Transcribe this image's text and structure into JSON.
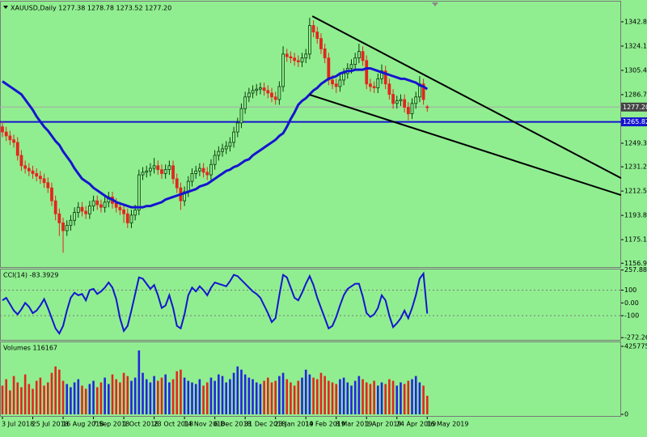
{
  "chart_data": [
    {
      "type": "candlestick",
      "title": "XAUUSD,Daily 1277.38 1278.78 1273.52 1277.20",
      "categories": [
        "3 Jul 2018",
        null,
        null,
        null,
        null,
        null,
        null,
        null,
        "25 Jul 2018",
        null,
        null,
        null,
        null,
        null,
        null,
        null,
        "16 Aug 2018",
        null,
        null,
        null,
        null,
        null,
        null,
        null,
        "7 Sep 2018",
        null,
        null,
        null,
        null,
        null,
        null,
        null,
        "1 Oct 2018",
        null,
        null,
        null,
        null,
        null,
        null,
        null,
        "23 Oct 2018",
        null,
        null,
        null,
        null,
        null,
        null,
        null,
        "14 Nov 2018",
        null,
        null,
        null,
        null,
        null,
        null,
        null,
        "6 Dec 2018",
        null,
        null,
        null,
        null,
        null,
        null,
        null,
        "31 Dec 2018",
        null,
        null,
        null,
        null,
        null,
        null,
        null,
        "23 Jan 2019",
        null,
        null,
        null,
        null,
        null,
        null,
        null,
        "14 Feb 2019",
        null,
        null,
        null,
        null,
        null,
        null,
        null,
        "8 Mar 2019",
        null,
        null,
        null,
        null,
        null,
        null,
        null,
        "1 Apr 2019",
        null,
        null,
        null,
        null,
        null,
        null,
        null,
        "24 Apr 2019",
        null,
        null,
        null,
        null,
        null,
        null,
        null,
        "16 May 2019"
      ],
      "open": [
        1262,
        1258,
        1255,
        1252,
        1250,
        1240,
        1232,
        1230,
        1228,
        1226,
        1224,
        1222,
        1219,
        1215,
        1205,
        1195,
        1188,
        1182,
        1186,
        1190,
        1196,
        1200,
        1197,
        1195,
        1201,
        1205,
        1202,
        1200,
        1204,
        1208,
        1203,
        1200,
        1198,
        1195,
        1188,
        1194,
        1198,
        1225,
        1227,
        1228,
        1230,
        1232,
        1229,
        1226,
        1229,
        1232,
        1222,
        1215,
        1205,
        1212,
        1220,
        1226,
        1228,
        1230,
        1227,
        1225,
        1233,
        1240,
        1243,
        1245,
        1247,
        1250,
        1258,
        1265,
        1276,
        1285,
        1288,
        1290,
        1291,
        1292,
        1290,
        1288,
        1285,
        1283,
        1293,
        1318,
        1316,
        1315,
        1313,
        1312,
        1315,
        1318,
        1340,
        1335,
        1330,
        1322,
        1315,
        1298,
        1295,
        1293,
        1298,
        1303,
        1307,
        1310,
        1315,
        1320,
        1313,
        1295,
        1293,
        1292,
        1299,
        1305,
        1295,
        1287,
        1280,
        1282,
        1283,
        1277,
        1272,
        1280,
        1285,
        1295,
        1277.38
      ],
      "high": [
        1266,
        1262,
        1259,
        1256,
        1254,
        1244,
        1236,
        1234,
        1232,
        1230,
        1228,
        1226,
        1223,
        1219,
        1209,
        1199,
        1192,
        1190,
        1194,
        1200,
        1204,
        1204,
        1201,
        1205,
        1209,
        1209,
        1206,
        1208,
        1212,
        1212,
        1207,
        1204,
        1202,
        1199,
        1198,
        1202,
        1229,
        1231,
        1232,
        1234,
        1238,
        1236,
        1233,
        1233,
        1236,
        1236,
        1226,
        1219,
        1216,
        1224,
        1230,
        1232,
        1234,
        1234,
        1231,
        1237,
        1244,
        1247,
        1249,
        1251,
        1254,
        1262,
        1269,
        1280,
        1289,
        1292,
        1294,
        1295,
        1296,
        1296,
        1294,
        1292,
        1289,
        1297,
        1324,
        1322,
        1320,
        1319,
        1317,
        1319,
        1322,
        1346,
        1344,
        1339,
        1334,
        1326,
        1319,
        1302,
        1299,
        1302,
        1307,
        1311,
        1314,
        1319,
        1326,
        1324,
        1317,
        1299,
        1297,
        1303,
        1310,
        1309,
        1299,
        1291,
        1286,
        1287,
        1287,
        1281,
        1284,
        1289,
        1301,
        1299,
        1278.78
      ],
      "low": [
        1254,
        1251,
        1248,
        1246,
        1236,
        1228,
        1226,
        1224,
        1222,
        1220,
        1218,
        1215,
        1211,
        1201,
        1190,
        1178,
        1165,
        1178,
        1182,
        1186,
        1192,
        1193,
        1191,
        1191,
        1197,
        1198,
        1196,
        1196,
        1200,
        1199,
        1196,
        1194,
        1188,
        1184,
        1184,
        1190,
        1194,
        1221,
        1223,
        1224,
        1226,
        1225,
        1222,
        1222,
        1225,
        1218,
        1211,
        1198,
        1201,
        1208,
        1216,
        1222,
        1224,
        1223,
        1221,
        1221,
        1229,
        1236,
        1239,
        1241,
        1243,
        1246,
        1254,
        1261,
        1272,
        1281,
        1284,
        1286,
        1287,
        1286,
        1284,
        1281,
        1279,
        1279,
        1289,
        1312,
        1311,
        1309,
        1308,
        1308,
        1311,
        1314,
        1331,
        1326,
        1318,
        1311,
        1294,
        1291,
        1288,
        1289,
        1294,
        1299,
        1303,
        1306,
        1311,
        1309,
        1291,
        1289,
        1288,
        1288,
        1295,
        1291,
        1283,
        1276,
        1276,
        1278,
        1273,
        1267,
        1268,
        1276,
        1281,
        1279,
        1273.52
      ],
      "close": [
        1258,
        1255,
        1252,
        1250,
        1240,
        1232,
        1230,
        1228,
        1226,
        1224,
        1222,
        1219,
        1215,
        1205,
        1195,
        1188,
        1182,
        1186,
        1190,
        1196,
        1200,
        1197,
        1195,
        1201,
        1205,
        1202,
        1200,
        1204,
        1208,
        1203,
        1200,
        1198,
        1195,
        1188,
        1194,
        1198,
        1225,
        1227,
        1228,
        1230,
        1232,
        1229,
        1226,
        1229,
        1232,
        1222,
        1215,
        1205,
        1212,
        1220,
        1226,
        1228,
        1230,
        1227,
        1225,
        1233,
        1240,
        1243,
        1245,
        1247,
        1250,
        1258,
        1265,
        1276,
        1285,
        1288,
        1290,
        1291,
        1292,
        1290,
        1288,
        1285,
        1283,
        1293,
        1318,
        1316,
        1315,
        1313,
        1312,
        1315,
        1318,
        1340,
        1335,
        1330,
        1322,
        1315,
        1298,
        1295,
        1293,
        1298,
        1303,
        1307,
        1310,
        1315,
        1320,
        1313,
        1295,
        1293,
        1292,
        1299,
        1305,
        1295,
        1287,
        1280,
        1282,
        1283,
        1277,
        1272,
        1280,
        1285,
        1295,
        1283,
        1277.2
      ],
      "up_color": "#0a3a0a",
      "down_color": "#e3261d",
      "ma": {
        "color": "#1515d0",
        "values": [
          1297,
          1295,
          1293,
          1291,
          1289,
          1287,
          1283,
          1279,
          1275,
          1270,
          1266,
          1262,
          1259,
          1255,
          1251,
          1248,
          1243,
          1239,
          1235,
          1230,
          1226,
          1222,
          1220,
          1218,
          1215,
          1213,
          1211,
          1209,
          1207,
          1206,
          1204,
          1203,
          1202,
          1201,
          1200,
          1200,
          1200,
          1200,
          1201,
          1201,
          1202,
          1203,
          1204,
          1206,
          1207,
          1208,
          1209,
          1210,
          1211,
          1212,
          1213,
          1214,
          1216,
          1217,
          1218,
          1220,
          1222,
          1224,
          1226,
          1228,
          1229,
          1231,
          1232,
          1234,
          1236,
          1237,
          1240,
          1242,
          1244,
          1246,
          1248,
          1250,
          1252,
          1255,
          1257,
          1262,
          1268,
          1273,
          1279,
          1282,
          1284,
          1287,
          1290,
          1292,
          1295,
          1297,
          1299,
          1300,
          1301,
          1303,
          1304,
          1305,
          1305,
          1306,
          1306,
          1306,
          1307,
          1307,
          1306,
          1305,
          1304,
          1303,
          1302,
          1301,
          1300,
          1299,
          1299,
          1298,
          1297,
          1296,
          1294,
          1293,
          1291
        ]
      },
      "trendlines": [
        {
          "color": "#000000",
          "x": [
            81.7,
            163.1
          ],
          "y": [
            1347.2,
            1222.5
          ]
        },
        {
          "color": "#000000",
          "x": [
            81.0,
            163.1
          ],
          "y": [
            1286.7,
            1209.4
          ]
        }
      ],
      "price_lines": [
        {
          "value": 1277.2,
          "label": "1277.20",
          "color": "#a8a8a8"
        },
        {
          "value": 1265.82,
          "color": "#1515d0"
        }
      ],
      "ylim": [
        1154,
        1358.4
      ],
      "yticks": [
        1342.85,
        1324.15,
        1305.45,
        1286.75,
        1249.35,
        {
          "value": 1231.2,
          "label": "1231.20"
        },
        {
          "value": 1212.5,
          "label": "1212.50"
        },
        {
          "value": 1193.8,
          "label": "1193.80"
        },
        {
          "value": 1175.1,
          "label": "1175.10"
        },
        1156.95
      ]
    },
    {
      "type": "line",
      "title": "CCI(14) -83.3929",
      "color": "#1515d0",
      "values": [
        20,
        40,
        -10,
        -60,
        -90,
        -50,
        0,
        -30,
        -80,
        -60,
        -20,
        30,
        -40,
        -120,
        -200,
        -240,
        -180,
        -60,
        40,
        80,
        60,
        70,
        20,
        100,
        110,
        70,
        90,
        120,
        160,
        120,
        30,
        -120,
        -220,
        -180,
        -60,
        70,
        200,
        190,
        150,
        110,
        140,
        60,
        -40,
        -20,
        60,
        -40,
        -180,
        -200,
        -90,
        60,
        120,
        90,
        130,
        100,
        60,
        120,
        160,
        150,
        140,
        130,
        170,
        220,
        210,
        180,
        150,
        120,
        90,
        70,
        40,
        -20,
        -80,
        -150,
        -120,
        60,
        220,
        200,
        120,
        40,
        20,
        80,
        150,
        210,
        140,
        40,
        -40,
        -120,
        -200,
        -180,
        -110,
        -20,
        60,
        110,
        130,
        150,
        150,
        50,
        -80,
        -110,
        -90,
        -40,
        60,
        20,
        -100,
        -190,
        -160,
        -120,
        -60,
        -120,
        -40,
        60,
        190,
        230,
        -83.3929
      ],
      "levels": [
        100,
        -100
      ],
      "ylim": [
        -290,
        262
      ],
      "yticks": [
        257.8861,
        100,
        {
          "value": 0,
          "label": "0.00"
        },
        -100,
        -272.2688
      ]
    },
    {
      "type": "bar",
      "title": "Volumes 116167",
      "up_color": "#2424e0",
      "down_color": "#e3261d",
      "values": [
        180000,
        220000,
        150000,
        240000,
        200000,
        170000,
        250000,
        190000,
        160000,
        210000,
        230000,
        180000,
        200000,
        260000,
        300000,
        280000,
        210000,
        190000,
        170000,
        200000,
        220000,
        180000,
        160000,
        190000,
        210000,
        170000,
        200000,
        230000,
        190000,
        250000,
        220000,
        200000,
        260000,
        240000,
        210000,
        230000,
        400000,
        260000,
        220000,
        200000,
        240000,
        210000,
        230000,
        250000,
        200000,
        220000,
        270000,
        280000,
        230000,
        210000,
        200000,
        190000,
        220000,
        180000,
        200000,
        230000,
        210000,
        250000,
        240000,
        200000,
        220000,
        260000,
        300000,
        280000,
        250000,
        230000,
        220000,
        200000,
        190000,
        210000,
        230000,
        200000,
        210000,
        240000,
        260000,
        220000,
        200000,
        180000,
        210000,
        230000,
        280000,
        250000,
        230000,
        220000,
        260000,
        240000,
        210000,
        200000,
        190000,
        220000,
        230000,
        200000,
        180000,
        210000,
        240000,
        220000,
        200000,
        190000,
        210000,
        180000,
        200000,
        190000,
        220000,
        210000,
        180000,
        200000,
        190000,
        210000,
        220000,
        240000,
        200000,
        180000,
        116167
      ],
      "ylim": [
        0,
        425775
      ],
      "yticks": [
        425775,
        0
      ]
    }
  ]
}
